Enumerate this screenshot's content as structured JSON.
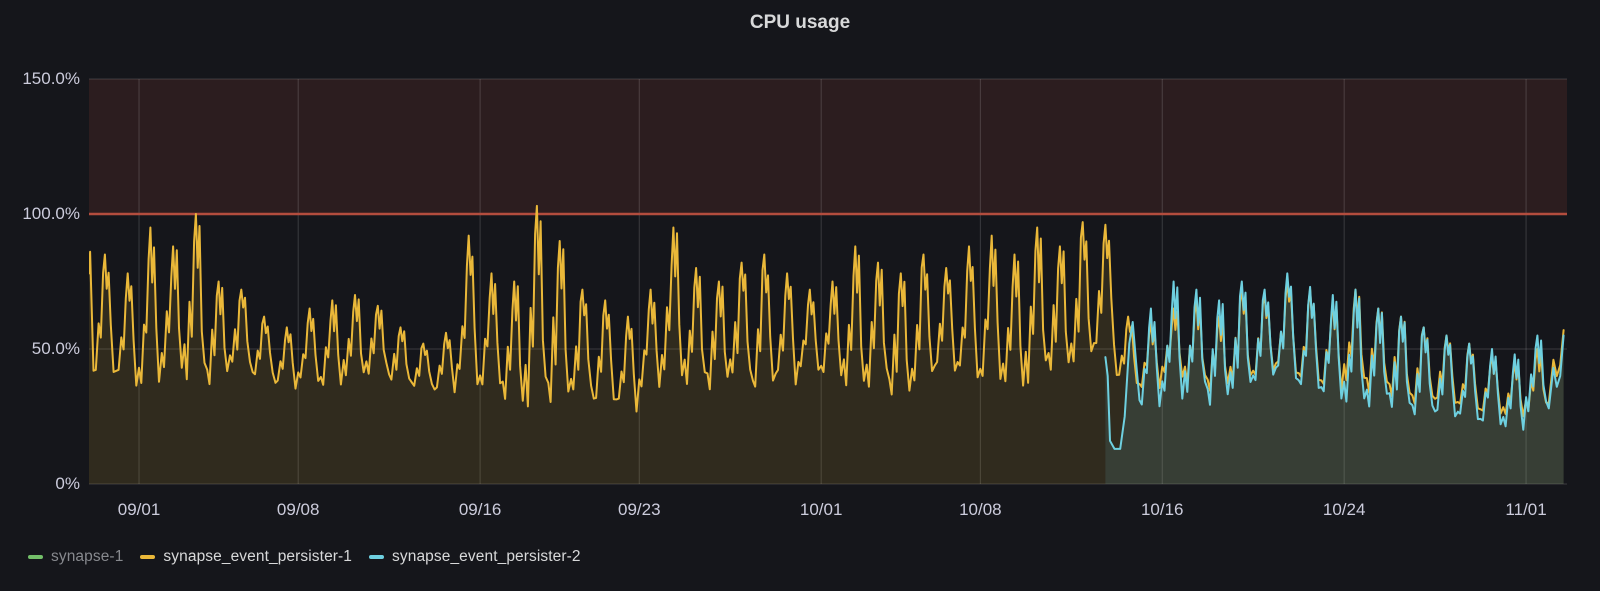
{
  "panel": {
    "title": "CPU usage"
  },
  "colors": {
    "background": "#15161b",
    "grid": "rgba(255,255,255,0.16)",
    "axis_text": "#ccccdc",
    "title_text": "#d8d9da",
    "threshold_line": "#b34d3e",
    "threshold_region_fill": "rgba(181,73,60,0.15)",
    "legend_text": "#d8d9da",
    "legend_text_dimmed": "#87898e"
  },
  "chart_data": {
    "type": "line",
    "title": "CPU usage",
    "xlabel": "",
    "ylabel": "",
    "y_unit": "percent",
    "ylim": [
      0,
      150
    ],
    "grid": true,
    "legend_position": "bottom-left",
    "y_ticks": [
      {
        "value": 0,
        "label": "0%"
      },
      {
        "value": 50,
        "label": "50.0%"
      },
      {
        "value": 100,
        "label": "100.0%"
      },
      {
        "value": 150,
        "label": "150.0%"
      }
    ],
    "x_domain_days": [
      -2.2,
      62.8
    ],
    "x_ticks": [
      {
        "day": 0,
        "label": "09/01"
      },
      {
        "day": 7,
        "label": "09/08"
      },
      {
        "day": 15,
        "label": "09/16"
      },
      {
        "day": 22,
        "label": "09/23"
      },
      {
        "day": 30,
        "label": "10/01"
      },
      {
        "day": 37,
        "label": "10/08"
      },
      {
        "day": 45,
        "label": "10/16"
      },
      {
        "day": 53,
        "label": "10/24"
      },
      {
        "day": 61,
        "label": "11/01"
      }
    ],
    "threshold": {
      "value": 100,
      "fill_above_to": 150
    },
    "series": [
      {
        "name": "synapse-1",
        "color": "#73BF69",
        "visible": false,
        "fill_opacity": 0.13,
        "lead_points": [],
        "daily_peak_trough": [],
        "tail_points": []
      },
      {
        "name": "synapse_event_persister-1",
        "color": "#EAB839",
        "visible": true,
        "fill_opacity": 0.13,
        "lead_points": [
          [
            -2.2,
            78
          ],
          [
            -2.15,
            86
          ]
        ],
        "daily_peak_trough": [
          [
            -2,
            85,
            40
          ],
          [
            -1,
            78,
            38
          ],
          [
            0,
            95,
            36
          ],
          [
            1,
            88,
            42
          ],
          [
            2,
            100,
            40
          ],
          [
            3,
            75,
            38
          ],
          [
            4,
            72,
            44
          ],
          [
            5,
            62,
            40
          ],
          [
            6,
            58,
            36
          ],
          [
            7,
            65,
            38
          ],
          [
            8,
            68,
            36
          ],
          [
            9,
            70,
            40
          ],
          [
            10,
            66,
            42
          ],
          [
            11,
            58,
            38
          ],
          [
            12,
            52,
            36
          ],
          [
            13,
            56,
            34
          ],
          [
            14,
            92,
            38
          ],
          [
            15,
            78,
            36
          ],
          [
            16,
            75,
            30
          ],
          [
            17,
            103,
            32
          ],
          [
            18,
            90,
            30
          ],
          [
            19,
            72,
            34
          ],
          [
            20,
            68,
            30
          ],
          [
            21,
            62,
            28
          ],
          [
            22,
            72,
            35
          ],
          [
            23,
            95,
            40
          ],
          [
            24,
            80,
            38
          ],
          [
            25,
            75,
            36
          ],
          [
            26,
            82,
            40
          ],
          [
            27,
            85,
            35
          ],
          [
            28,
            78,
            38
          ],
          [
            29,
            72,
            42
          ],
          [
            30,
            75,
            40
          ],
          [
            31,
            88,
            36
          ],
          [
            32,
            82,
            38
          ],
          [
            33,
            78,
            32
          ],
          [
            34,
            85,
            38
          ],
          [
            35,
            80,
            42
          ],
          [
            36,
            88,
            40
          ],
          [
            37,
            92,
            38
          ],
          [
            38,
            85,
            36
          ],
          [
            39,
            95,
            40
          ],
          [
            40,
            88,
            42
          ],
          [
            41,
            97,
            45
          ],
          [
            42,
            96,
            50
          ],
          [
            43,
            62,
            38
          ],
          [
            44,
            60,
            35
          ],
          [
            45,
            65,
            40
          ],
          [
            46,
            68,
            38
          ],
          [
            47,
            62,
            35
          ],
          [
            48,
            72,
            38
          ],
          [
            49,
            70,
            40
          ],
          [
            50,
            75,
            42
          ],
          [
            51,
            72,
            38
          ],
          [
            52,
            68,
            35
          ],
          [
            53,
            72,
            38
          ],
          [
            54,
            65,
            35
          ],
          [
            55,
            62,
            32
          ],
          [
            56,
            58,
            30
          ],
          [
            57,
            55,
            30
          ],
          [
            58,
            52,
            28
          ],
          [
            59,
            48,
            26
          ],
          [
            60,
            45,
            25
          ],
          [
            61,
            50,
            28
          ]
        ],
        "tail_points": [
          [
            62.0,
            30
          ],
          [
            62.2,
            46
          ],
          [
            62.35,
            40
          ],
          [
            62.5,
            44
          ],
          [
            62.65,
            57
          ]
        ]
      },
      {
        "name": "synapse_event_persister-2",
        "color": "#6ED0E0",
        "visible": true,
        "fill_opacity": 0.12,
        "lead_points": [
          [
            42.5,
            47
          ],
          [
            42.6,
            40
          ],
          [
            42.7,
            16
          ],
          [
            42.9,
            13
          ],
          [
            43.15,
            13
          ],
          [
            43.35,
            25
          ],
          [
            43.55,
            52
          ],
          [
            43.7,
            60
          ],
          [
            43.85,
            45
          ]
        ],
        "daily_peak_trough": [
          [
            44,
            65,
            28
          ],
          [
            45,
            75,
            32
          ],
          [
            46,
            72,
            35
          ],
          [
            47,
            68,
            30
          ],
          [
            48,
            75,
            35
          ],
          [
            49,
            72,
            38
          ],
          [
            50,
            78,
            40
          ],
          [
            51,
            73,
            35
          ],
          [
            52,
            70,
            32
          ],
          [
            53,
            72,
            30
          ],
          [
            54,
            65,
            30
          ],
          [
            55,
            62,
            28
          ],
          [
            56,
            58,
            26
          ],
          [
            57,
            55,
            25
          ],
          [
            58,
            52,
            24
          ],
          [
            59,
            50,
            22
          ],
          [
            60,
            48,
            20
          ],
          [
            61,
            55,
            28
          ]
        ],
        "tail_points": [
          [
            62.0,
            28
          ],
          [
            62.2,
            43
          ],
          [
            62.35,
            36
          ],
          [
            62.5,
            40
          ],
          [
            62.65,
            55
          ]
        ]
      }
    ]
  }
}
